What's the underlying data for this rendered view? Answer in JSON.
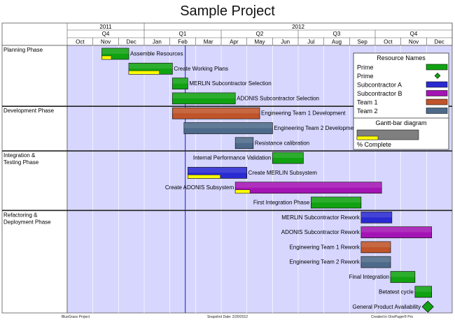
{
  "chart_data": {
    "type": "gantt",
    "title": "Sample Project",
    "years": [
      {
        "label": "2011",
        "start": 0,
        "span": 3
      },
      {
        "label": "2012",
        "start": 3,
        "span": 12
      }
    ],
    "quarters": [
      {
        "label": "Q4",
        "start": 0,
        "span": 3
      },
      {
        "label": "Q1",
        "start": 3,
        "span": 3
      },
      {
        "label": "Q2",
        "start": 6,
        "span": 3
      },
      {
        "label": "Q3",
        "start": 9,
        "span": 3
      },
      {
        "label": "Q4",
        "start": 12,
        "span": 3
      }
    ],
    "months": [
      "Oct",
      "Nov",
      "Dec",
      "Jan",
      "Feb",
      "Mar",
      "Apr",
      "May",
      "Jun",
      "Jul",
      "Aug",
      "Sep",
      "Oct",
      "Nov",
      "Dec"
    ],
    "snapshot_month": 4.6,
    "phases": [
      {
        "label": "Planning Phase",
        "rows": 4
      },
      {
        "label": "Development Phase",
        "rows": 3
      },
      {
        "label": "Integration & Testing Phase",
        "rows": 4
      },
      {
        "label": "Refactoring & Deployment Phase",
        "rows": 7
      }
    ],
    "tasks": [
      {
        "row": 0,
        "label": "Assemble Resources",
        "start": 1.35,
        "end": 2.4,
        "resource": "Prime",
        "complete": 0.35,
        "label_side": "right"
      },
      {
        "row": 1,
        "label": "Create Working Plans",
        "start": 2.4,
        "end": 4.1,
        "resource": "Prime",
        "complete": 0.7,
        "label_side": "right"
      },
      {
        "row": 2,
        "label": "MERLIN Subcontractor Selection",
        "start": 4.1,
        "end": 4.7,
        "resource": "Prime",
        "complete": 0,
        "label_side": "right"
      },
      {
        "row": 3,
        "label": "ADONIS Subcontractor Selection",
        "start": 4.1,
        "end": 6.55,
        "resource": "Prime",
        "complete": 0,
        "label_side": "right"
      },
      {
        "row": 4,
        "label": "Engineering Team 1 Development",
        "start": 4.1,
        "end": 7.5,
        "resource": "Team 1",
        "complete": 0,
        "label_side": "right"
      },
      {
        "row": 5,
        "label": "Engineering Team 2 Development",
        "start": 4.55,
        "end": 8.0,
        "resource": "Team 2",
        "complete": 0,
        "label_side": "right"
      },
      {
        "row": 6,
        "label": "Resistance calibration",
        "start": 6.55,
        "end": 7.25,
        "resource": "Team 2",
        "complete": 0,
        "label_side": "right"
      },
      {
        "row": 7,
        "label": "Internal Performance Validation",
        "start": 8.0,
        "end": 9.2,
        "resource": "Prime",
        "complete": 0,
        "label_side": "left"
      },
      {
        "row": 8,
        "label": "Create MERLIN Subsystem",
        "start": 4.7,
        "end": 7.0,
        "resource": "Subcontractor A",
        "complete": 0.55,
        "label_side": "right"
      },
      {
        "row": 9,
        "label": "Create ADONIS Subsystem",
        "start": 6.55,
        "end": 12.25,
        "resource": "Subcontractor B",
        "complete": 0.1,
        "label_side": "left"
      },
      {
        "row": 10,
        "label": "First Integration Phase",
        "start": 9.5,
        "end": 11.45,
        "resource": "Prime",
        "complete": 0,
        "label_side": "left"
      },
      {
        "row": 11,
        "label": "MERLIN Subcontractor Rework",
        "start": 11.45,
        "end": 12.65,
        "resource": "Subcontractor A",
        "complete": 0,
        "label_side": "left"
      },
      {
        "row": 12,
        "label": "ADONIS Subcontractor Rework",
        "start": 11.45,
        "end": 14.2,
        "resource": "Subcontractor B",
        "complete": 0,
        "label_side": "left"
      },
      {
        "row": 13,
        "label": "Engineering Team 1 Rework",
        "start": 11.45,
        "end": 12.6,
        "resource": "Team 1",
        "complete": 0,
        "label_side": "left"
      },
      {
        "row": 14,
        "label": "Engineering Team 2 Rework",
        "start": 11.45,
        "end": 12.6,
        "resource": "Team 2",
        "complete": 0,
        "label_side": "left"
      },
      {
        "row": 15,
        "label": "Final Integration",
        "start": 12.6,
        "end": 13.55,
        "resource": "Prime",
        "complete": 0,
        "label_side": "left"
      },
      {
        "row": 16,
        "label": "Betatest cycle",
        "start": 13.55,
        "end": 14.2,
        "resource": "Prime",
        "complete": 0,
        "label_side": "left"
      },
      {
        "row": 17,
        "label": "General Product Availability",
        "start": 14.05,
        "end": 14.05,
        "resource": "Prime",
        "milestone": true,
        "complete": 0,
        "label_side": "left"
      }
    ],
    "legend": {
      "title": "Resource Names",
      "entries": [
        {
          "label": "Prime",
          "color": "#11a211",
          "shape": "bar"
        },
        {
          "label": "Prime",
          "color": "#11a211",
          "shape": "diamond"
        },
        {
          "label": "Subcontractor A",
          "color": "#2a2ad2",
          "shape": "bar"
        },
        {
          "label": "Subcontractor B",
          "color": "#a414b4",
          "shape": "bar"
        },
        {
          "label": "Team 1",
          "color": "#c0542a",
          "shape": "bar"
        },
        {
          "label": "Team 2",
          "color": "#4d6a8a",
          "shape": "bar"
        }
      ],
      "gantt_title": "Gantt-bar diagram",
      "complete_label": "% Complete",
      "complete_color": "#ffff00",
      "sample_bar_color": "#7f7f7f"
    },
    "footer": {
      "left": "BlueGrass Project",
      "center": "Snapshot Date: 2/20/2012",
      "right": "Created in OnePager® Pro"
    }
  },
  "colors": {
    "chart_bg": "#d6d6ff",
    "grid": "#ffffff",
    "phase_sep": "#222222",
    "snapshot_line": "#1a1ad0",
    "Prime": "#11a211",
    "Subcontractor A": "#2a2ad2",
    "Subcontractor B": "#a414b4",
    "Team 1": "#c0542a",
    "Team 2": "#4d6a8a",
    "complete": "#ffff00"
  }
}
